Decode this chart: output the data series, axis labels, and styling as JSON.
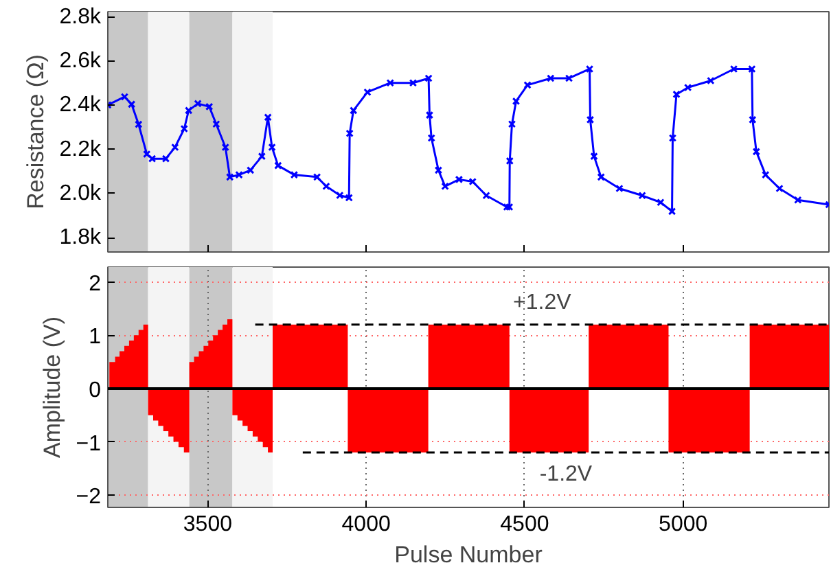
{
  "chart_data": [
    {
      "type": "line",
      "ylabel": "Resistance (Ω)",
      "xlim": [
        3185,
        5460
      ],
      "ylim": [
        1735,
        2825
      ],
      "xticks": [
        3500,
        4000,
        4500,
        5000
      ],
      "yticks": [
        {
          "value": 1800,
          "label": "1.8k"
        },
        {
          "value": 2000,
          "label": "2.0k"
        },
        {
          "value": 2200,
          "label": "2.2k"
        },
        {
          "value": 2400,
          "label": "2.4k"
        },
        {
          "value": 2600,
          "label": "2.6k"
        },
        {
          "value": 2800,
          "label": "2.8k"
        }
      ],
      "tick_labels": "y",
      "grid": false,
      "marker": "cross",
      "line_style": "solid",
      "bands": [
        {
          "axis": "x",
          "from": 3185,
          "to": 3312,
          "color": "#c8c8c8"
        },
        {
          "axis": "x",
          "from": 3312,
          "to": 3442,
          "color": "#f4f4f4"
        },
        {
          "axis": "x",
          "from": 3442,
          "to": 3578,
          "color": "#c8c8c8"
        },
        {
          "axis": "x",
          "from": 3578,
          "to": 3705,
          "color": "#f4f4f4"
        }
      ],
      "series": [
        {
          "color": "#0000ff",
          "x": [
            3185,
            3238,
            3260,
            3282,
            3308,
            3325,
            3368,
            3397,
            3426,
            3440,
            3469,
            3505,
            3527,
            3556,
            3570,
            3599,
            3635,
            3671,
            3690,
            3703,
            3722,
            3773,
            3845,
            3874,
            3917,
            3946,
            3948,
            3960,
            4004,
            4076,
            4148,
            4197,
            4200,
            4206,
            4228,
            4249,
            4293,
            4336,
            4379,
            4444,
            4452,
            4453,
            4460,
            4473,
            4509,
            4582,
            4640,
            4705,
            4707,
            4719,
            4741,
            4799,
            4871,
            4929,
            4965,
            4967,
            4979,
            5015,
            5087,
            5160,
            5217,
            5219,
            5231,
            5260,
            5304,
            5362,
            5460
          ],
          "values": [
            2402,
            2439,
            2405,
            2314,
            2179,
            2158,
            2158,
            2210,
            2294,
            2377,
            2408,
            2394,
            2315,
            2210,
            2075,
            2085,
            2106,
            2169,
            2346,
            2210,
            2127,
            2085,
            2075,
            2033,
            1992,
            1981,
            2273,
            2377,
            2460,
            2502,
            2502,
            2523,
            2356,
            2252,
            2106,
            2033,
            2064,
            2054,
            1991,
            1939,
            1939,
            2148,
            2315,
            2419,
            2492,
            2523,
            2523,
            2565,
            2335,
            2169,
            2075,
            2023,
            1991,
            1960,
            1919,
            2252,
            2450,
            2481,
            2512,
            2565,
            2565,
            2335,
            2190,
            2085,
            2023,
            1971,
            1950
          ]
        }
      ]
    },
    {
      "type": "area",
      "ylabel": "Amplitude (V)",
      "xlabel": "Pulse Number",
      "xlim": [
        3185,
        5460
      ],
      "ylim": [
        -2.23,
        2.28
      ],
      "xticks": [
        3500,
        4000,
        4500,
        5000
      ],
      "yticks": [
        {
          "value": -2,
          "label": "−2"
        },
        {
          "value": -1,
          "label": "−1"
        },
        0,
        1,
        2
      ],
      "grid": true,
      "bands": [
        {
          "axis": "x",
          "from": 3185,
          "to": 3312,
          "color": "#c8c8c8"
        },
        {
          "axis": "x",
          "from": 3312,
          "to": 3442,
          "color": "#f4f4f4"
        },
        {
          "axis": "x",
          "from": 3442,
          "to": 3578,
          "color": "#c8c8c8"
        },
        {
          "axis": "x",
          "from": 3578,
          "to": 3705,
          "color": "#f4f4f4"
        }
      ],
      "ref_lines": [
        {
          "axis": "y",
          "value": 0,
          "color": "#000000",
          "line_style": "solid"
        }
      ],
      "annotations": [
        "+1.2V",
        "-1.2V"
      ],
      "series": [
        {
          "color": "#ff0000",
          "x": [
            3190,
            3208,
            3208,
            3222,
            3222,
            3237,
            3237,
            3252,
            3252,
            3267,
            3267,
            3282,
            3282,
            3297,
            3297,
            3312,
            3312,
            3328,
            3328,
            3344,
            3344,
            3360,
            3360,
            3376,
            3376,
            3392,
            3392,
            3408,
            3408,
            3425,
            3425,
            3442,
            3442,
            3457,
            3457,
            3472,
            3472,
            3487,
            3487,
            3502,
            3502,
            3517,
            3517,
            3532,
            3532,
            3547,
            3547,
            3562,
            3562,
            3578,
            3578,
            3594,
            3594,
            3610,
            3610,
            3626,
            3626,
            3642,
            3642,
            3658,
            3658,
            3674,
            3674,
            3690,
            3690,
            3705,
            3705,
            3942,
            3942,
            4196,
            4196,
            4452,
            4452,
            4702,
            4702,
            4954,
            4954,
            5210,
            5210,
            5460
          ],
          "values": [
            0.5,
            0.5,
            0.6,
            0.6,
            0.7,
            0.7,
            0.8,
            0.8,
            0.9,
            0.9,
            1.0,
            1.0,
            1.1,
            1.1,
            1.2,
            1.2,
            -0.5,
            -0.5,
            -0.6,
            -0.6,
            -0.7,
            -0.7,
            -0.8,
            -0.8,
            -0.9,
            -0.9,
            -1.0,
            -1.0,
            -1.1,
            -1.1,
            -1.2,
            -1.2,
            0.5,
            0.5,
            0.6,
            0.6,
            0.7,
            0.7,
            0.8,
            0.8,
            0.9,
            0.9,
            1.0,
            1.0,
            1.1,
            1.1,
            1.2,
            1.2,
            1.3,
            1.3,
            -0.5,
            -0.5,
            -0.6,
            -0.6,
            -0.7,
            -0.7,
            -0.8,
            -0.8,
            -0.9,
            -0.9,
            -1.0,
            -1.0,
            -1.1,
            -1.1,
            -1.2,
            -1.2,
            1.2,
            1.2,
            -1.2,
            -1.2,
            1.2,
            1.2,
            -1.2,
            -1.2,
            1.2,
            1.2,
            -1.2,
            -1.2,
            1.2,
            1.2
          ]
        },
        {
          "type": "line",
          "color": "#000000",
          "line_style": "dashed",
          "x": [
            3650,
            5460
          ],
          "values": [
            1.2,
            1.2
          ]
        },
        {
          "type": "line",
          "color": "#000000",
          "line_style": "dashed",
          "x": [
            3800,
            5460
          ],
          "values": [
            -1.2,
            -1.2
          ]
        }
      ]
    }
  ]
}
